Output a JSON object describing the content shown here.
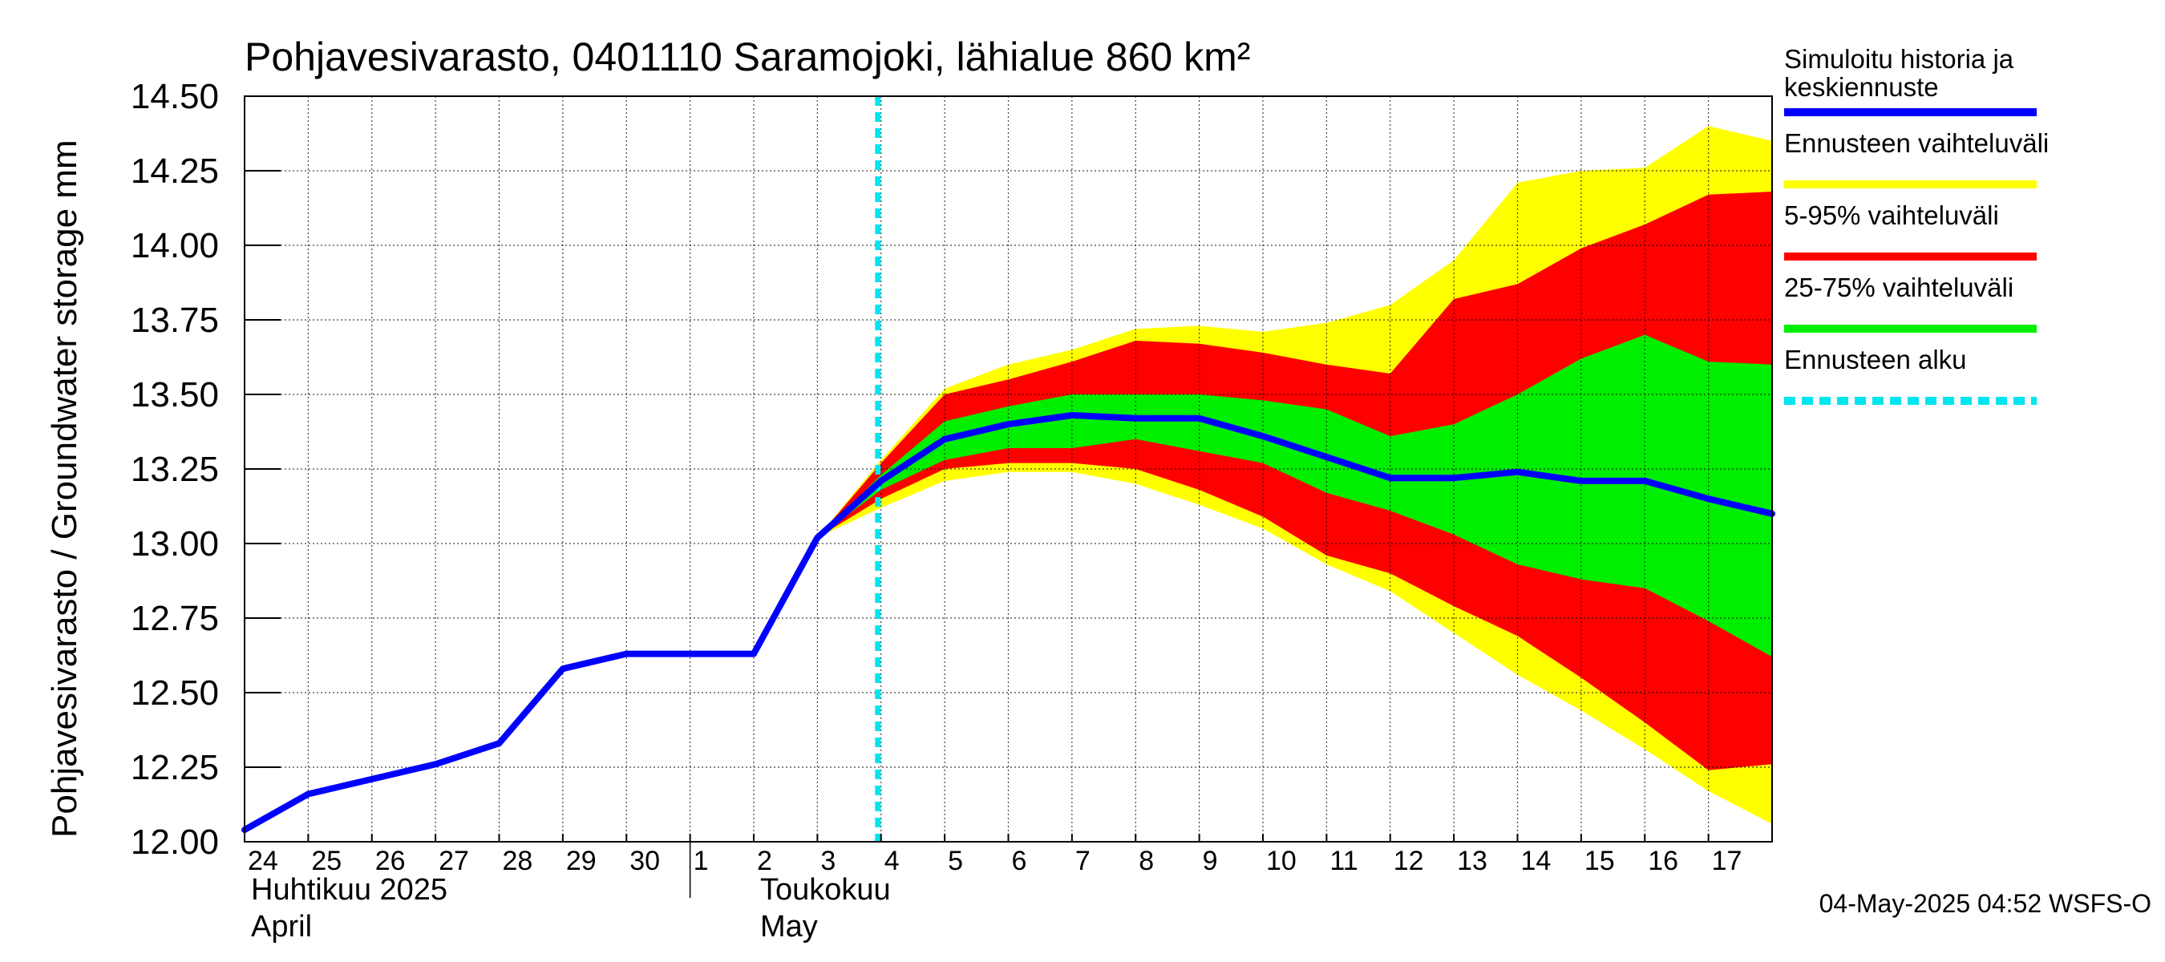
{
  "chart_data": {
    "type": "area",
    "title": "Pohjavesivarasto, 0401110 Saramojoki, lähialue 860 km²",
    "ylabel": "Pohjavesivarasto / Groundwater storage   mm",
    "ylim": [
      12.0,
      14.5
    ],
    "yticks": [
      "12.00",
      "12.25",
      "12.50",
      "12.75",
      "13.00",
      "13.25",
      "13.50",
      "13.75",
      "14.00",
      "14.25",
      "14.50"
    ],
    "x_start_day": 24,
    "x_end_day": 48,
    "day_tick_labels": [
      "24",
      "25",
      "26",
      "27",
      "28",
      "29",
      "30",
      "1",
      "2",
      "3",
      "4",
      "5",
      "6",
      "7",
      "8",
      "9",
      "10",
      "11",
      "12",
      "13",
      "14",
      "15",
      "16",
      "17"
    ],
    "month_labels": [
      {
        "line1": "Huhtikuu  2025",
        "line2": "April",
        "day": 24
      },
      {
        "line1": "Toukokuu",
        "line2": "May",
        "day": 32
      }
    ],
    "month_boundary_day": 31,
    "forecast_start_day": 33.95,
    "forecast_days": [
      33,
      34,
      35,
      36,
      37,
      38,
      39,
      40,
      41,
      42,
      43,
      44,
      45,
      46,
      47,
      48
    ],
    "bands": {
      "yellow_upper": [
        13.02,
        13.28,
        13.52,
        13.6,
        13.65,
        13.72,
        13.73,
        13.71,
        13.74,
        13.8,
        13.95,
        14.21,
        14.25,
        14.26,
        14.4,
        14.35
      ],
      "red_upper": [
        13.02,
        13.27,
        13.5,
        13.55,
        13.61,
        13.68,
        13.67,
        13.64,
        13.6,
        13.57,
        13.82,
        13.87,
        13.99,
        14.07,
        14.17,
        14.18
      ],
      "green_upper": [
        13.02,
        13.23,
        13.41,
        13.46,
        13.5,
        13.5,
        13.5,
        13.48,
        13.45,
        13.36,
        13.4,
        13.5,
        13.62,
        13.7,
        13.61,
        13.6
      ],
      "green_lower": [
        13.02,
        13.18,
        13.28,
        13.32,
        13.32,
        13.35,
        13.31,
        13.27,
        13.17,
        13.11,
        13.03,
        12.93,
        12.88,
        12.85,
        12.74,
        12.62
      ],
      "red_lower": [
        13.02,
        13.15,
        13.25,
        13.27,
        13.27,
        13.25,
        13.18,
        13.09,
        12.96,
        12.9,
        12.79,
        12.69,
        12.55,
        12.4,
        12.24,
        12.26
      ],
      "yellow_lower": [
        13.02,
        13.12,
        13.21,
        13.24,
        13.24,
        13.2,
        13.13,
        13.05,
        12.93,
        12.84,
        12.7,
        12.56,
        12.44,
        12.31,
        12.17,
        12.06
      ]
    },
    "series": [
      {
        "name": "Simuloitu historia ja keskiennuste",
        "color": "#0000ff",
        "x": [
          24,
          25,
          26,
          27,
          28,
          29,
          30,
          31,
          32,
          33,
          34,
          35,
          36,
          37,
          38,
          39,
          40,
          41,
          42,
          43,
          44,
          45,
          46,
          47,
          48
        ],
        "values": [
          12.04,
          12.16,
          12.21,
          12.26,
          12.33,
          12.58,
          12.63,
          12.63,
          12.63,
          13.02,
          13.21,
          13.35,
          13.4,
          13.43,
          13.42,
          13.42,
          13.36,
          13.29,
          13.22,
          13.22,
          13.24,
          13.21,
          13.21,
          13.15,
          13.1
        ]
      }
    ],
    "legend": [
      {
        "line1": "Simuloitu historia ja",
        "line2": "keskiennuste",
        "color": "#0000ff",
        "style": "solid"
      },
      {
        "line1": "Ennusteen vaihteluväli",
        "line2": "",
        "color": "#ffff00",
        "style": "solid"
      },
      {
        "line1": "5-95% vaihteluväli",
        "line2": "",
        "color": "#ff0000",
        "style": "solid"
      },
      {
        "line1": "25-75% vaihteluväli",
        "line2": "",
        "color": "#00ee00",
        "style": "solid"
      },
      {
        "line1": "Ennusteen alku",
        "line2": "",
        "color": "#00e5ee",
        "style": "dashed"
      }
    ],
    "footer": "04-May-2025 04:52 WSFS-O"
  }
}
